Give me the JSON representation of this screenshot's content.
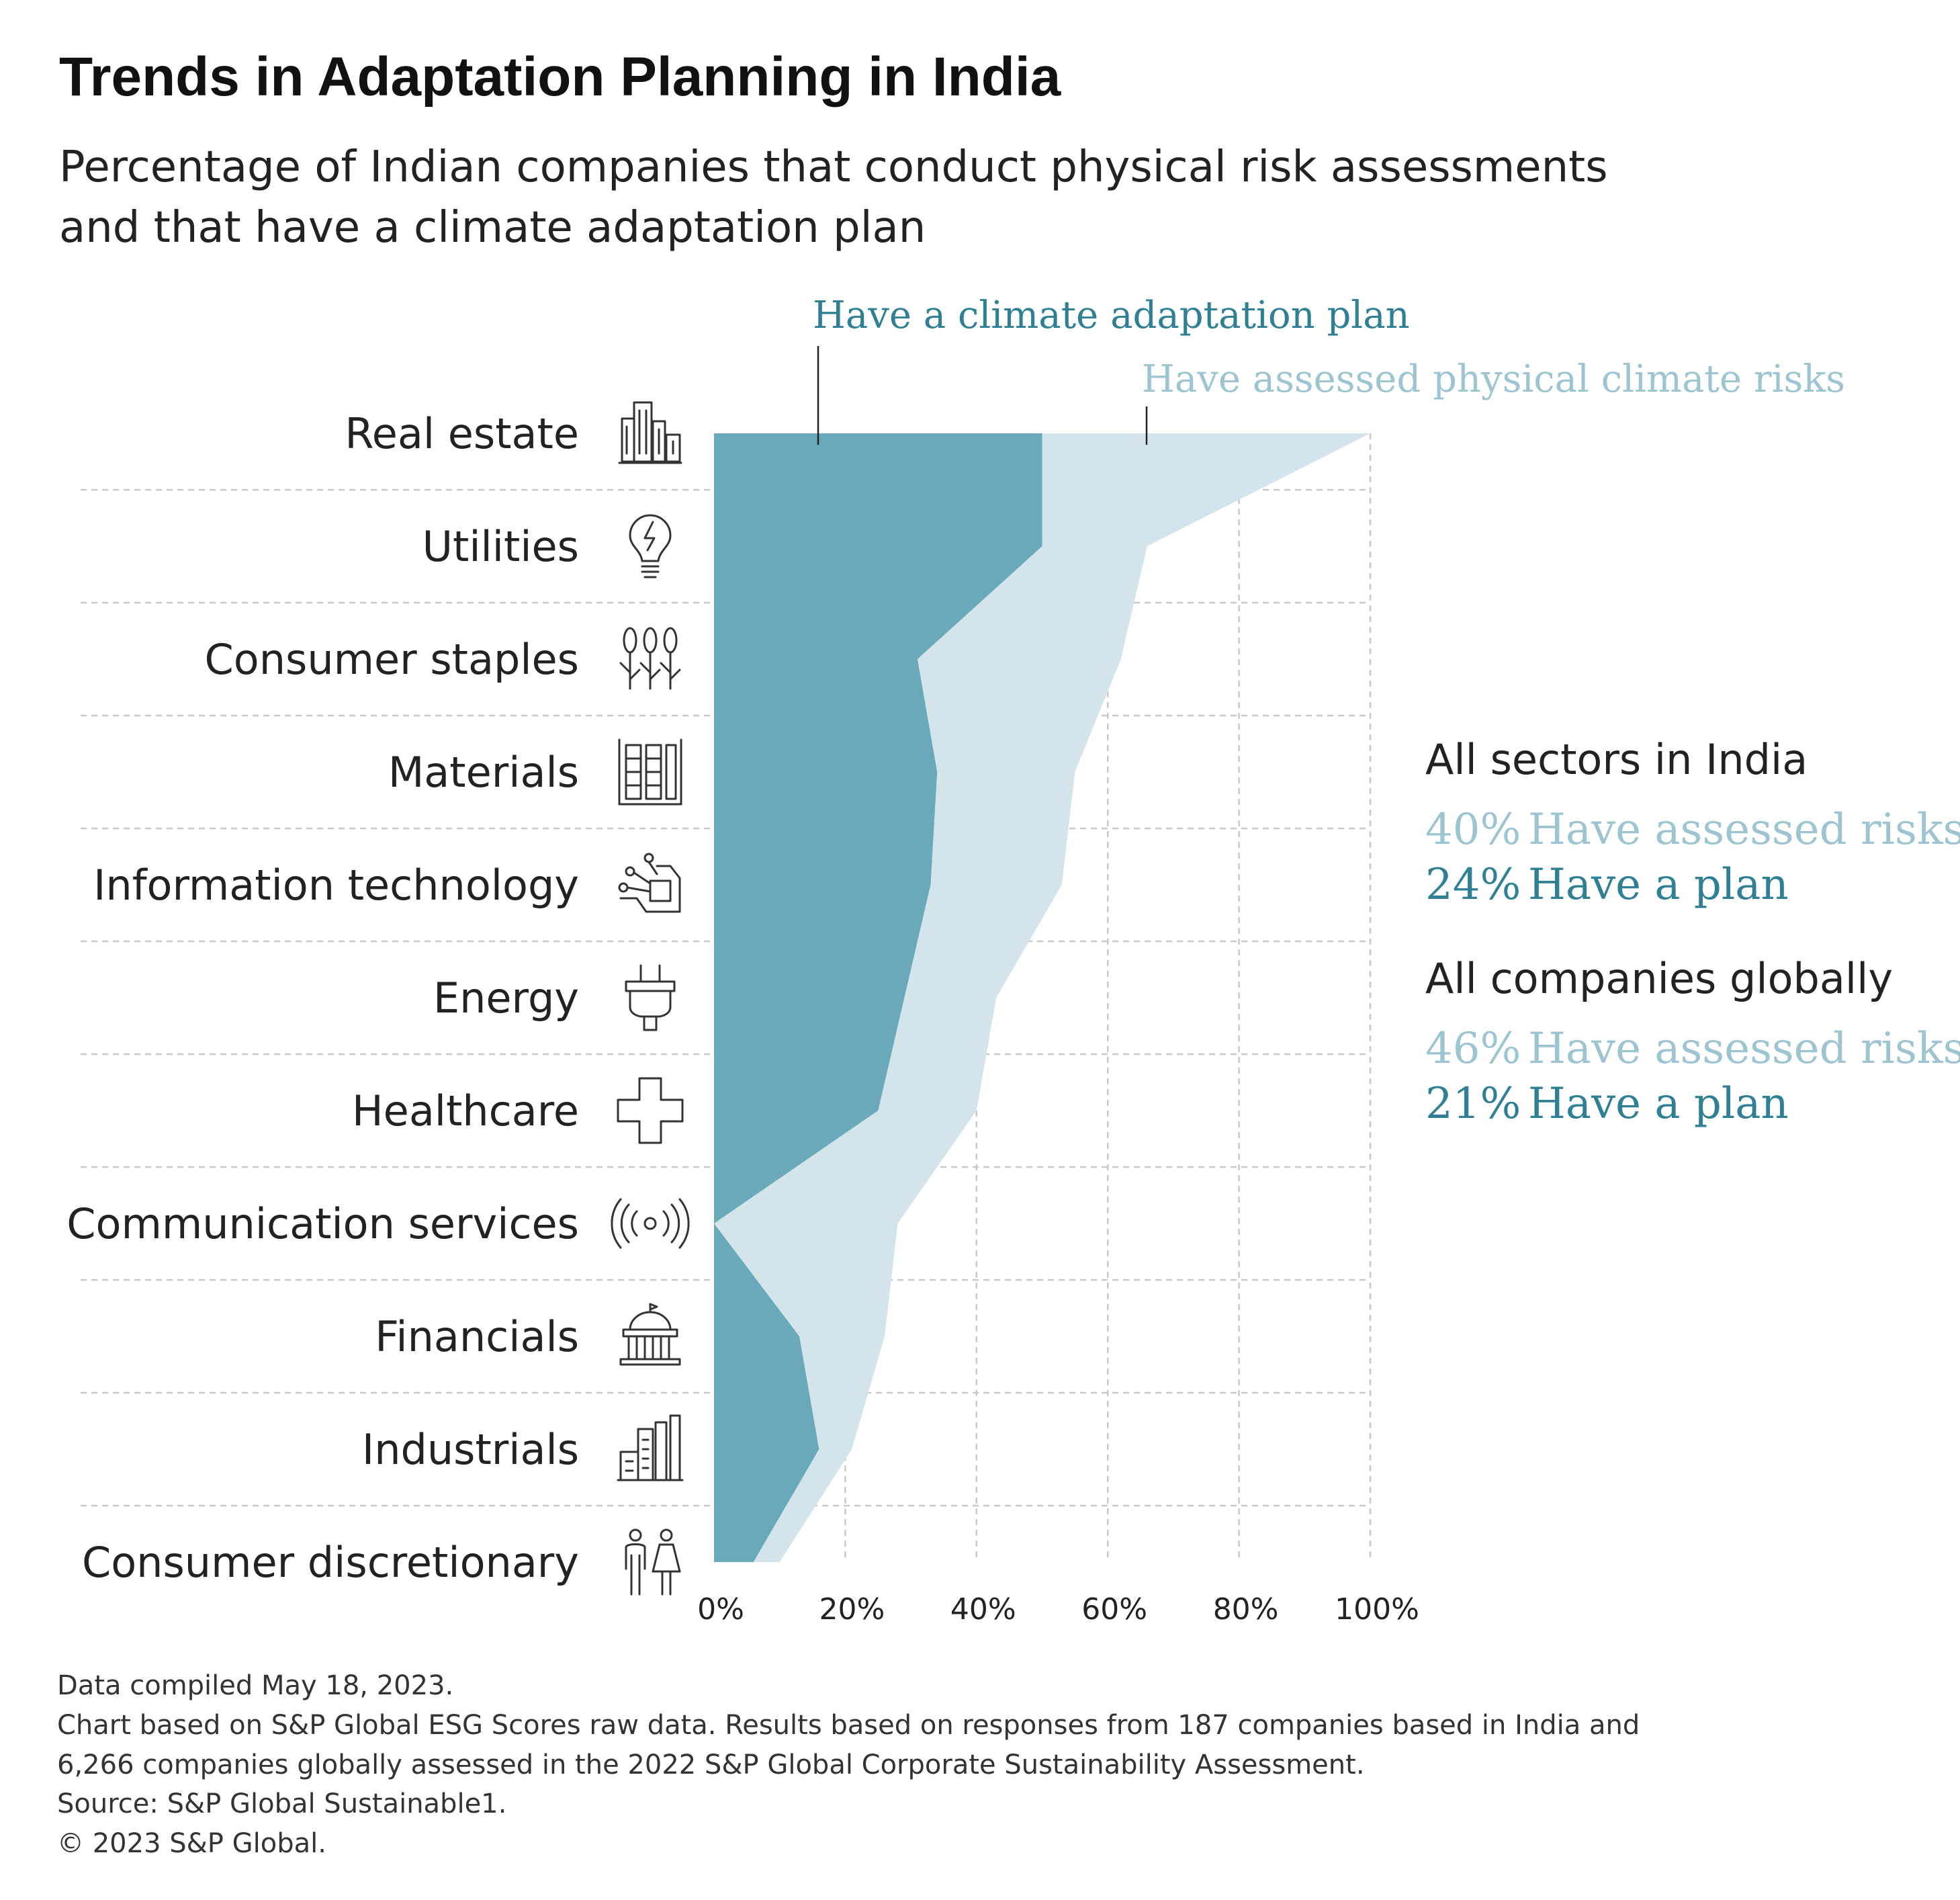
{
  "title": "Trends in Adaptation Planning in India",
  "subtitle": [
    "Percentage of Indian companies that conduct physical risk assessments",
    "and that have a climate adaptation plan"
  ],
  "colors": {
    "plan": "#6aa9ba",
    "risk": "#d3e5ea",
    "plan_text": "#2f7f95",
    "risk_text": "#9cc4d1"
  },
  "chart_data": {
    "type": "area",
    "orientation": "horizontal",
    "categories": [
      "Real estate",
      "Utilities",
      "Consumer staples",
      "Materials",
      "Information technology",
      "Energy",
      "Healthcare",
      "Communication services",
      "Financials",
      "Industrials",
      "Consumer discretionary"
    ],
    "category_icons": [
      "buildings-icon",
      "lightbulb-icon",
      "wheat-icon",
      "materials-icon",
      "circuit-hand-icon",
      "plug-icon",
      "medical-cross-icon",
      "broadcast-icon",
      "bank-icon",
      "factory-icon",
      "people-icon"
    ],
    "series": [
      {
        "name": "Have assessed physical climate risks",
        "values": [
          100,
          66,
          62,
          55,
          53,
          43,
          40,
          28,
          26,
          21,
          10
        ]
      },
      {
        "name": "Have a climate adaptation plan",
        "values": [
          50,
          50,
          31,
          34,
          33,
          29,
          25,
          0,
          13,
          16,
          6
        ]
      }
    ],
    "xlim": [
      0,
      100
    ],
    "x_ticks": [
      "0%",
      "20%",
      "40%",
      "60%",
      "80%",
      "100%"
    ],
    "grid": true
  },
  "summary": {
    "india_heading": "All sectors in India",
    "india_risk_pct": "40%",
    "india_risk_label": "Have assessed risks",
    "india_plan_pct": "24%",
    "india_plan_label": "Have a plan",
    "global_heading": "All companies globally",
    "global_risk_pct": "46%",
    "global_risk_label": "Have assessed risks",
    "global_plan_pct": "21%",
    "global_plan_label": "Have a plan"
  },
  "footnotes": [
    "Data compiled May 18, 2023.",
    "Chart based on S&P Global ESG Scores raw data. Results based on responses from 187 companies based in India and",
    "6,266 companies globally assessed in the 2022 S&P Global Corporate Sustainability Assessment.",
    "Source: S&P Global Sustainable1.",
    "© 2023 S&P Global."
  ]
}
